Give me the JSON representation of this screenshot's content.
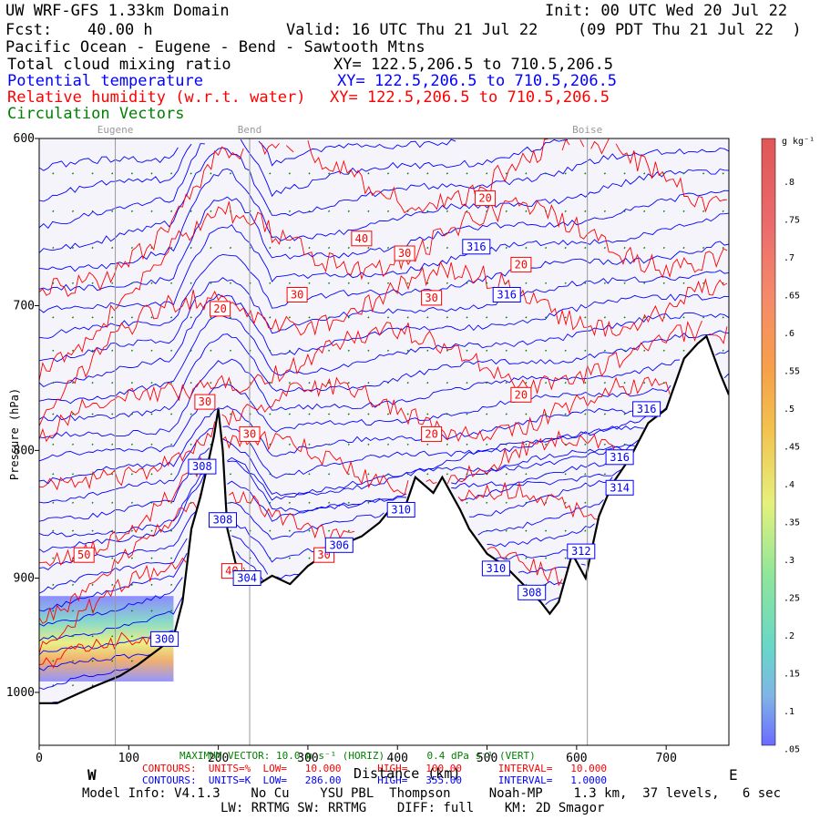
{
  "header": {
    "title": "UW WRF-GFS 1.33km Domain",
    "init": "Init: 00 UTC Wed 20 Jul 22",
    "fcst_label": "Fcst:",
    "fcst_value": "40.00 h",
    "valid": "Valid: 16 UTC Thu 21 Jul 22",
    "valid_local": "(09 PDT Thu 21 Jul 22  )",
    "cross_section": "Pacific Ocean - Eugene - Bend - Sawtooth Mtns",
    "fields": [
      {
        "name": "Total cloud mixing ratio",
        "xy": "XY= 122.5,206.5 to 710.5,206.5",
        "color": "#000000"
      },
      {
        "name": "Potential temperature",
        "xy": "XY= 122.5,206.5 to 710.5,206.5",
        "color": "#0000ff"
      },
      {
        "name": "Relative humidity (w.r.t. water)",
        "xy": "XY= 122.5,206.5 to 710.5,206.5",
        "color": "#ff0000"
      },
      {
        "name": "Circulation Vectors",
        "xy": "",
        "color": "#008000"
      }
    ]
  },
  "places": [
    "Eugene",
    "Bend",
    "Boise"
  ],
  "axis": {
    "x_ticks": [
      "0",
      "100",
      "200",
      "300",
      "400",
      "500",
      "600",
      "700"
    ],
    "x_label": "Distance (km)",
    "y_ticks": [
      "600",
      "700",
      "800",
      "900",
      "1000"
    ],
    "y_label": "Pressure (hPa)",
    "west": "W",
    "east": "E"
  },
  "colorbar": {
    "unit": "g kg⁻¹",
    "labels": [
      ".8",
      ".75",
      ".7",
      ".65",
      ".6",
      ".55",
      ".5",
      ".45",
      ".4",
      ".35",
      ".3",
      ".25",
      ".2",
      ".15",
      ".1",
      ".05"
    ]
  },
  "footer": {
    "max_vector": "MAXIMUM VECTOR: 10.0 m s⁻¹ (HORIZ)       0.4 dPa s⁻¹ (VERT)",
    "rh_contours": "CONTOURS:  UNITS=%  LOW=   10.000      HIGH=   100.00      INTERVAL=   10.000",
    "theta_contours": "CONTOURS:  UNITS=K  LOW=   286.00      HIGH=   355.00      INTERVAL=   1.0000",
    "model_info": "Model Info: V4.1.3    No Cu    YSU PBL  Thompson     Noah-MP    1.3 km,  37 levels,   6 sec",
    "model_info2": "LW: RRTMG SW: RRTMG    DIFF: full    KM: 2D Smagor"
  },
  "chart_data": {
    "type": "cross-section",
    "x_range_km": [
      0,
      770
    ],
    "y_range_hPa": [
      1050,
      600
    ],
    "y_scale": "log-pressure",
    "places_km": [
      {
        "name": "Eugene",
        "x": 85
      },
      {
        "name": "Bend",
        "x": 235
      },
      {
        "name": "Boise",
        "x": 612
      }
    ],
    "terrain": [
      [
        0,
        1010
      ],
      [
        20,
        1010
      ],
      [
        60,
        995
      ],
      [
        90,
        985
      ],
      [
        110,
        975
      ],
      [
        135,
        960
      ],
      [
        150,
        950
      ],
      [
        160,
        920
      ],
      [
        170,
        860
      ],
      [
        180,
        835
      ],
      [
        190,
        805
      ],
      [
        195,
        790
      ],
      [
        200,
        770
      ],
      [
        205,
        800
      ],
      [
        210,
        860
      ],
      [
        220,
        890
      ],
      [
        230,
        900
      ],
      [
        245,
        905
      ],
      [
        260,
        898
      ],
      [
        280,
        905
      ],
      [
        300,
        890
      ],
      [
        320,
        880
      ],
      [
        340,
        872
      ],
      [
        360,
        866
      ],
      [
        380,
        855
      ],
      [
        395,
        842
      ],
      [
        405,
        850
      ],
      [
        420,
        820
      ],
      [
        440,
        832
      ],
      [
        450,
        820
      ],
      [
        470,
        845
      ],
      [
        480,
        860
      ],
      [
        500,
        880
      ],
      [
        520,
        890
      ],
      [
        540,
        905
      ],
      [
        560,
        920
      ],
      [
        570,
        930
      ],
      [
        580,
        920
      ],
      [
        595,
        880
      ],
      [
        610,
        900
      ],
      [
        625,
        850
      ],
      [
        640,
        825
      ],
      [
        660,
        805
      ],
      [
        680,
        780
      ],
      [
        700,
        770
      ],
      [
        720,
        735
      ],
      [
        735,
        725
      ],
      [
        745,
        720
      ],
      [
        760,
        745
      ],
      [
        770,
        760
      ]
    ],
    "rh_labels": [
      {
        "value": "20",
        "x": 498,
        "y": 634
      },
      {
        "value": "40",
        "x": 360,
        "y": 658
      },
      {
        "value": "30",
        "x": 408,
        "y": 667
      },
      {
        "value": "20",
        "x": 538,
        "y": 674
      },
      {
        "value": "30",
        "x": 288,
        "y": 693
      },
      {
        "value": "30",
        "x": 438,
        "y": 695
      },
      {
        "value": "20",
        "x": 202,
        "y": 702
      },
      {
        "value": "20",
        "x": 538,
        "y": 760
      },
      {
        "value": "30",
        "x": 185,
        "y": 765
      },
      {
        "value": "30",
        "x": 235,
        "y": 788
      },
      {
        "value": "20",
        "x": 438,
        "y": 788
      },
      {
        "value": "50",
        "x": 50,
        "y": 881
      },
      {
        "value": "40",
        "x": 215,
        "y": 894
      },
      {
        "value": "30",
        "x": 318,
        "y": 881
      }
    ],
    "theta_labels": [
      {
        "value": "316",
        "x": 488,
        "y": 663
      },
      {
        "value": "316",
        "x": 522,
        "y": 693
      },
      {
        "value": "316",
        "x": 678,
        "y": 770
      },
      {
        "value": "316",
        "x": 648,
        "y": 805
      },
      {
        "value": "314",
        "x": 648,
        "y": 828
      },
      {
        "value": "308",
        "x": 182,
        "y": 812
      },
      {
        "value": "308",
        "x": 205,
        "y": 853
      },
      {
        "value": "306",
        "x": 335,
        "y": 873
      },
      {
        "value": "310",
        "x": 404,
        "y": 845
      },
      {
        "value": "304",
        "x": 232,
        "y": 900
      },
      {
        "value": "310",
        "x": 510,
        "y": 892
      },
      {
        "value": "312",
        "x": 605,
        "y": 878
      },
      {
        "value": "308",
        "x": 550,
        "y": 912
      },
      {
        "value": "300",
        "x": 140,
        "y": 952
      }
    ],
    "theta_range_K": [
      286,
      355
    ],
    "theta_interval_K": 1,
    "rh_range_pct": [
      10,
      100
    ],
    "rh_interval_pct": 10,
    "cloud_region": {
      "x_km": [
        0,
        150
      ],
      "y_hPa": [
        915,
        990
      ]
    },
    "colors": {
      "theta": "#0000ff",
      "rh": "#ff0000",
      "terrain": "#000000",
      "vectors": "#008000",
      "above_ground": "#f5f4fb"
    }
  }
}
